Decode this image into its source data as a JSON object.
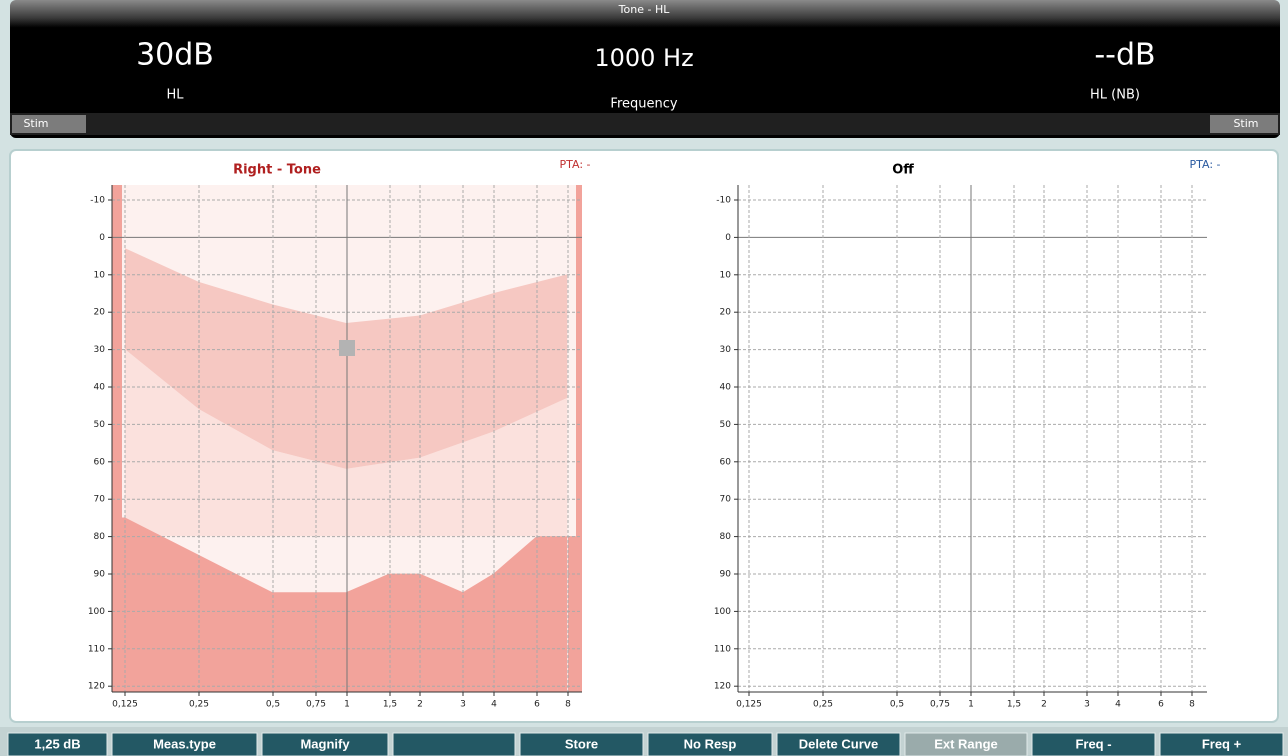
{
  "header": {
    "mode": "Tone - HL",
    "left_value": "30dB",
    "left_label": "HL",
    "center_value": "1000 Hz",
    "center_label": "Frequency",
    "right_value": "--dB",
    "right_label": "HL (NB)",
    "stim_left": "Stim",
    "stim_right": "Stim"
  },
  "charts": [
    {
      "title": "Right - Tone",
      "pta": "PTA: -",
      "y_labels": [
        "-10",
        "0",
        "10",
        "20",
        "30",
        "40",
        "50",
        "60",
        "70",
        "80",
        "90",
        "100",
        "110",
        "120"
      ],
      "x_labels": [
        "0,125",
        "0,25",
        "0,5",
        "0,75",
        "1",
        "1,5",
        "2",
        "3",
        "4",
        "6",
        "8"
      ]
    },
    {
      "title": "Off",
      "pta": "PTA: -",
      "y_labels": [
        "-10",
        "0",
        "10",
        "20",
        "30",
        "40",
        "50",
        "60",
        "70",
        "80",
        "90",
        "100",
        "110",
        "120"
      ],
      "x_labels": [
        "0,125",
        "0,25",
        "0,5",
        "0,75",
        "1",
        "1,5",
        "2",
        "3",
        "4",
        "6",
        "8"
      ]
    }
  ],
  "toolbar": {
    "buttons": [
      "1,25 dB",
      "Meas.type",
      "Magnify",
      "Store",
      "No Resp",
      "Delete Curve",
      "Ext Range",
      "Freq -",
      "Freq +"
    ]
  }
}
